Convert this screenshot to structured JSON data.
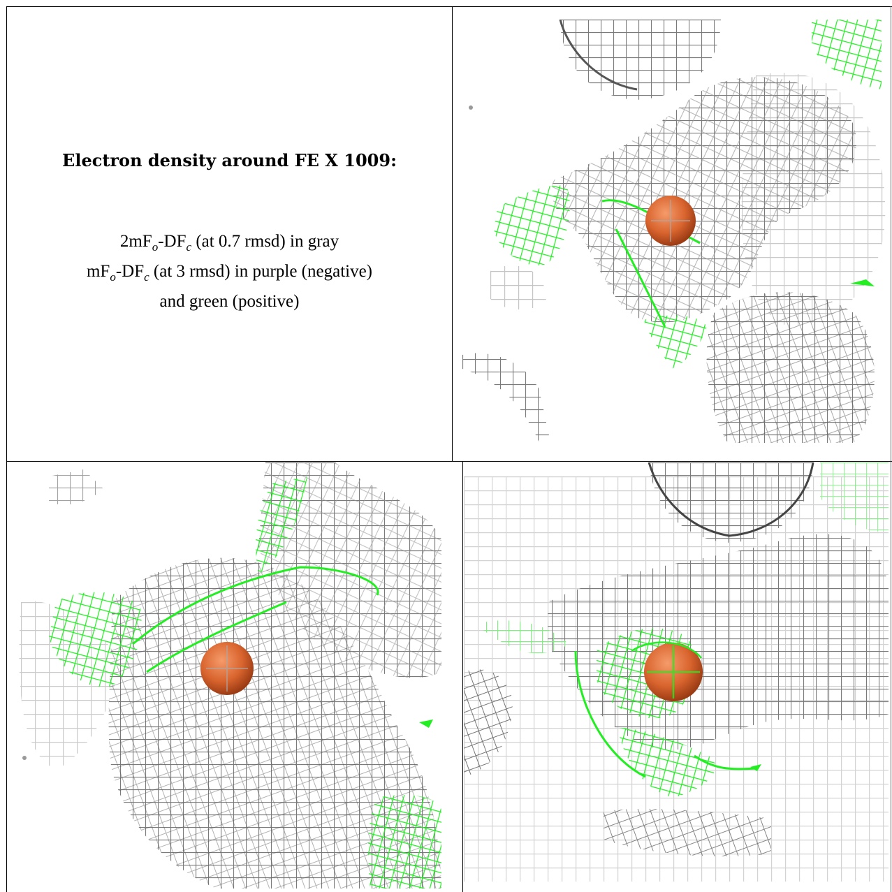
{
  "caption": {
    "title": "Electron density around FE X 1009:",
    "line1_main": "2mF",
    "line1_sub_o": "o",
    "line1_mid": "-DF",
    "line1_sub_c": "c",
    "line1_rest": " (at 0.7 rmsd) in gray",
    "line2_main": "mF",
    "line2_sub_o": "o",
    "line2_mid": "-DF",
    "line2_sub_c": "c",
    "line2_rest": " (at 3 rmsd) in purple (negative)",
    "line3": "and green (positive)"
  },
  "panels": [
    {
      "name": "density-view-top-right",
      "depicts": "mesh-density-with-fe-atom"
    },
    {
      "name": "density-view-bottom-left",
      "depicts": "mesh-density-with-fe-atom"
    },
    {
      "name": "density-view-bottom-right",
      "depicts": "mesh-density-with-fe-atom"
    }
  ],
  "colors": {
    "mesh_gray": "#8a8a8a",
    "mesh_green": "#22ee22",
    "atom_orange": "#d9642e",
    "border": "#000000"
  }
}
